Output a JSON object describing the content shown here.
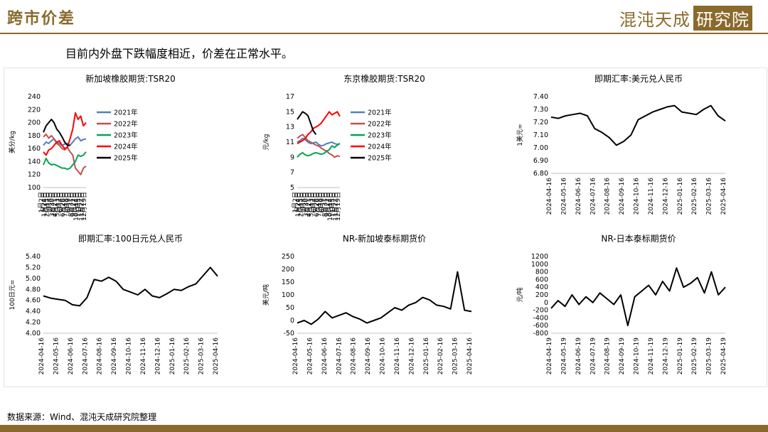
{
  "page": {
    "title": "跨市价差",
    "logo_text": "混沌天成",
    "logo_box": "研究院",
    "subtitle": "目前内外盘下跌幅度相近，价差在正常水平。",
    "source": "数据来源：Wind、混沌天成研究院整理",
    "accent_color": "#8a6a2c"
  },
  "chart_data": [
    {
      "type": "line",
      "title": "新加坡橡胶期货:TSR20",
      "ylabel": "美分/kg",
      "ylim": [
        100,
        240
      ],
      "yticks": [
        100,
        120,
        140,
        160,
        180,
        200,
        220,
        240
      ],
      "x_tick_labels": [
        "1月2日",
        "1月24日",
        "2月15日",
        "3月8日",
        "3月30日",
        "4月21日",
        "5月13日",
        "6月4日",
        "6月26日",
        "7月18日",
        "8月9日",
        "8月31日",
        "9月22日",
        "10月14日",
        "11月5日",
        "11月27日",
        "12月19日"
      ],
      "legend": "right",
      "series": [
        {
          "name": "2021年",
          "color": "#4f81bd",
          "values": [
            165,
            170,
            168,
            172,
            175,
            170,
            168,
            165,
            167,
            168,
            165,
            170,
            175,
            178,
            172,
            174,
            175
          ]
        },
        {
          "name": "2022年",
          "color": "#c0504d",
          "values": [
            178,
            182,
            176,
            180,
            175,
            168,
            165,
            160,
            158,
            162,
            155,
            150,
            130,
            125,
            120,
            130,
            133
          ]
        },
        {
          "name": "2023年",
          "color": "#00a651",
          "values": [
            135,
            145,
            138,
            135,
            136,
            134,
            132,
            130,
            130,
            128,
            130,
            135,
            140,
            150,
            148,
            150,
            155
          ]
        },
        {
          "name": "2024年",
          "color": "#ff0000",
          "values": [
            155,
            150,
            158,
            160,
            165,
            170,
            172,
            165,
            160,
            162,
            175,
            190,
            215,
            205,
            210,
            195,
            200
          ]
        },
        {
          "name": "2025年",
          "color": "#000000",
          "values": [
            185,
            195,
            200,
            205,
            200,
            190,
            185,
            178,
            170,
            165,
            165
          ]
        }
      ]
    },
    {
      "type": "line",
      "title": "东京橡胶期货:TSR20",
      "ylabel": "元/kg",
      "ylim": [
        5,
        17
      ],
      "yticks": [
        5,
        7,
        9,
        11,
        13,
        15,
        17
      ],
      "x_tick_labels": [
        "1月2日",
        "1月24日",
        "2月15日",
        "3月8日",
        "3月30日",
        "4月21日",
        "5月13日",
        "6月4日",
        "6月26日",
        "7月18日",
        "8月9日",
        "8月31日",
        "9月22日",
        "10月14日",
        "11月5日",
        "11月27日",
        "12月19日"
      ],
      "legend": "right",
      "series": [
        {
          "name": "2021年",
          "color": "#4f81bd",
          "values": [
            11,
            11.2,
            11.5,
            11.3,
            11.0,
            10.8,
            10.9,
            11.0,
            10.7,
            10.5,
            10.6,
            10.8,
            10.9,
            11.0,
            10.8,
            10.7,
            10.8
          ]
        },
        {
          "name": "2022年",
          "color": "#c0504d",
          "values": [
            11.5,
            11.8,
            12.0,
            11.6,
            11.2,
            11.0,
            10.8,
            10.6,
            10.5,
            10.2,
            10.0,
            9.8,
            9.5,
            9.3,
            9.0,
            9.2,
            9.1
          ]
        },
        {
          "name": "2023年",
          "color": "#00a651",
          "values": [
            9.0,
            9.4,
            9.6,
            9.3,
            9.2,
            9.3,
            9.5,
            9.6,
            9.5,
            9.4,
            9.5,
            9.8,
            10.0,
            10.5,
            10.3,
            10.6,
            10.8
          ]
        },
        {
          "name": "2024年",
          "color": "#ff0000",
          "values": [
            10.8,
            11.0,
            11.2,
            11.5,
            12.0,
            12.3,
            12.8,
            13.0,
            13.2,
            13.5,
            14.0,
            14.5,
            15.0,
            14.6,
            14.8,
            15.0,
            14.4
          ]
        },
        {
          "name": "2025年",
          "color": "#000000",
          "values": [
            14.0,
            14.5,
            15.0,
            14.8,
            14.5,
            13.5,
            12.5,
            12.0
          ]
        }
      ]
    },
    {
      "type": "line",
      "title": "即期汇率:美元兑人民币",
      "ylabel": "1美元=",
      "ylim": [
        6.8,
        7.4
      ],
      "yticks": [
        "6.80",
        "6.90",
        "7.00",
        "7.10",
        "7.20",
        "7.30",
        "7.40"
      ],
      "x_tick_labels": [
        "2024-04-16",
        "2024-05-16",
        "2024-06-16",
        "2024-07-16",
        "2024-08-16",
        "2024-09-16",
        "2024-10-16",
        "2024-11-16",
        "2024-12-16",
        "2025-01-16",
        "2025-02-16",
        "2025-03-16",
        "2025-04-16"
      ],
      "series": [
        {
          "name": "",
          "color": "#000000",
          "values": [
            7.24,
            7.23,
            7.25,
            7.26,
            7.27,
            7.25,
            7.15,
            7.12,
            7.08,
            7.02,
            7.05,
            7.1,
            7.22,
            7.25,
            7.28,
            7.3,
            7.32,
            7.33,
            7.28,
            7.27,
            7.26,
            7.3,
            7.33,
            7.25,
            7.21
          ]
        }
      ]
    },
    {
      "type": "line",
      "title": "即期汇率:100日元兑人民币",
      "ylabel": "100日元=",
      "ylim": [
        4.0,
        5.4
      ],
      "yticks": [
        "4.00",
        "4.20",
        "4.40",
        "4.60",
        "4.80",
        "5.00",
        "5.20",
        "5.40"
      ],
      "x_tick_labels": [
        "2024-04-16",
        "2024-05-16",
        "2024-06-16",
        "2024-07-16",
        "2024-08-16",
        "2024-09-16",
        "2024-10-16",
        "2024-11-16",
        "2024-12-16",
        "2025-01-16",
        "2025-02-16",
        "2025-03-16",
        "2025-04-16"
      ],
      "series": [
        {
          "name": "",
          "color": "#000000",
          "values": [
            4.68,
            4.64,
            4.62,
            4.6,
            4.52,
            4.5,
            4.65,
            4.98,
            4.95,
            5.02,
            4.95,
            4.8,
            4.75,
            4.7,
            4.8,
            4.68,
            4.65,
            4.72,
            4.8,
            4.78,
            4.85,
            4.9,
            5.05,
            5.2,
            5.04
          ]
        }
      ]
    },
    {
      "type": "line",
      "title": "NR-新加坡泰标期货价",
      "ylabel": "美元/吨",
      "ylim": [
        -50,
        250
      ],
      "yticks": [
        -50,
        0,
        50,
        100,
        150,
        200,
        250
      ],
      "x_tick_labels": [
        "2024-04-16",
        "2024-05-16",
        "2024-06-16",
        "2024-07-16",
        "2024-08-16",
        "2024-09-16",
        "2024-10-16",
        "2024-11-16",
        "2024-12-16",
        "2025-01-16",
        "2025-02-16",
        "2025-03-16",
        "2025-04-16"
      ],
      "series": [
        {
          "name": "",
          "color": "#000000",
          "values": [
            -10,
            0,
            -15,
            5,
            35,
            10,
            20,
            30,
            15,
            5,
            -10,
            0,
            10,
            30,
            50,
            40,
            60,
            70,
            90,
            80,
            60,
            55,
            45,
            190,
            40,
            35
          ]
        }
      ]
    },
    {
      "type": "line",
      "title": "NR-日本泰标期货价",
      "ylabel": "元/吨",
      "ylim": [
        -800,
        1200
      ],
      "yticks": [
        -800,
        -600,
        -400,
        -200,
        0,
        200,
        400,
        600,
        800,
        1000,
        1200
      ],
      "x_tick_labels": [
        "2024-04-19",
        "2024-05-19",
        "2024-06-19",
        "2024-07-19",
        "2024-08-19",
        "2024-09-19",
        "2024-10-19",
        "2024-11-19",
        "2024-12-19",
        "2025-01-19",
        "2025-02-19",
        "2025-03-19",
        "2025-04-19"
      ],
      "series": [
        {
          "name": "",
          "color": "#000000",
          "values": [
            -150,
            50,
            -100,
            200,
            -50,
            150,
            0,
            250,
            100,
            -50,
            200,
            -600,
            150,
            300,
            450,
            200,
            550,
            300,
            900,
            400,
            500,
            650,
            250,
            800,
            200,
            400
          ]
        }
      ]
    }
  ]
}
